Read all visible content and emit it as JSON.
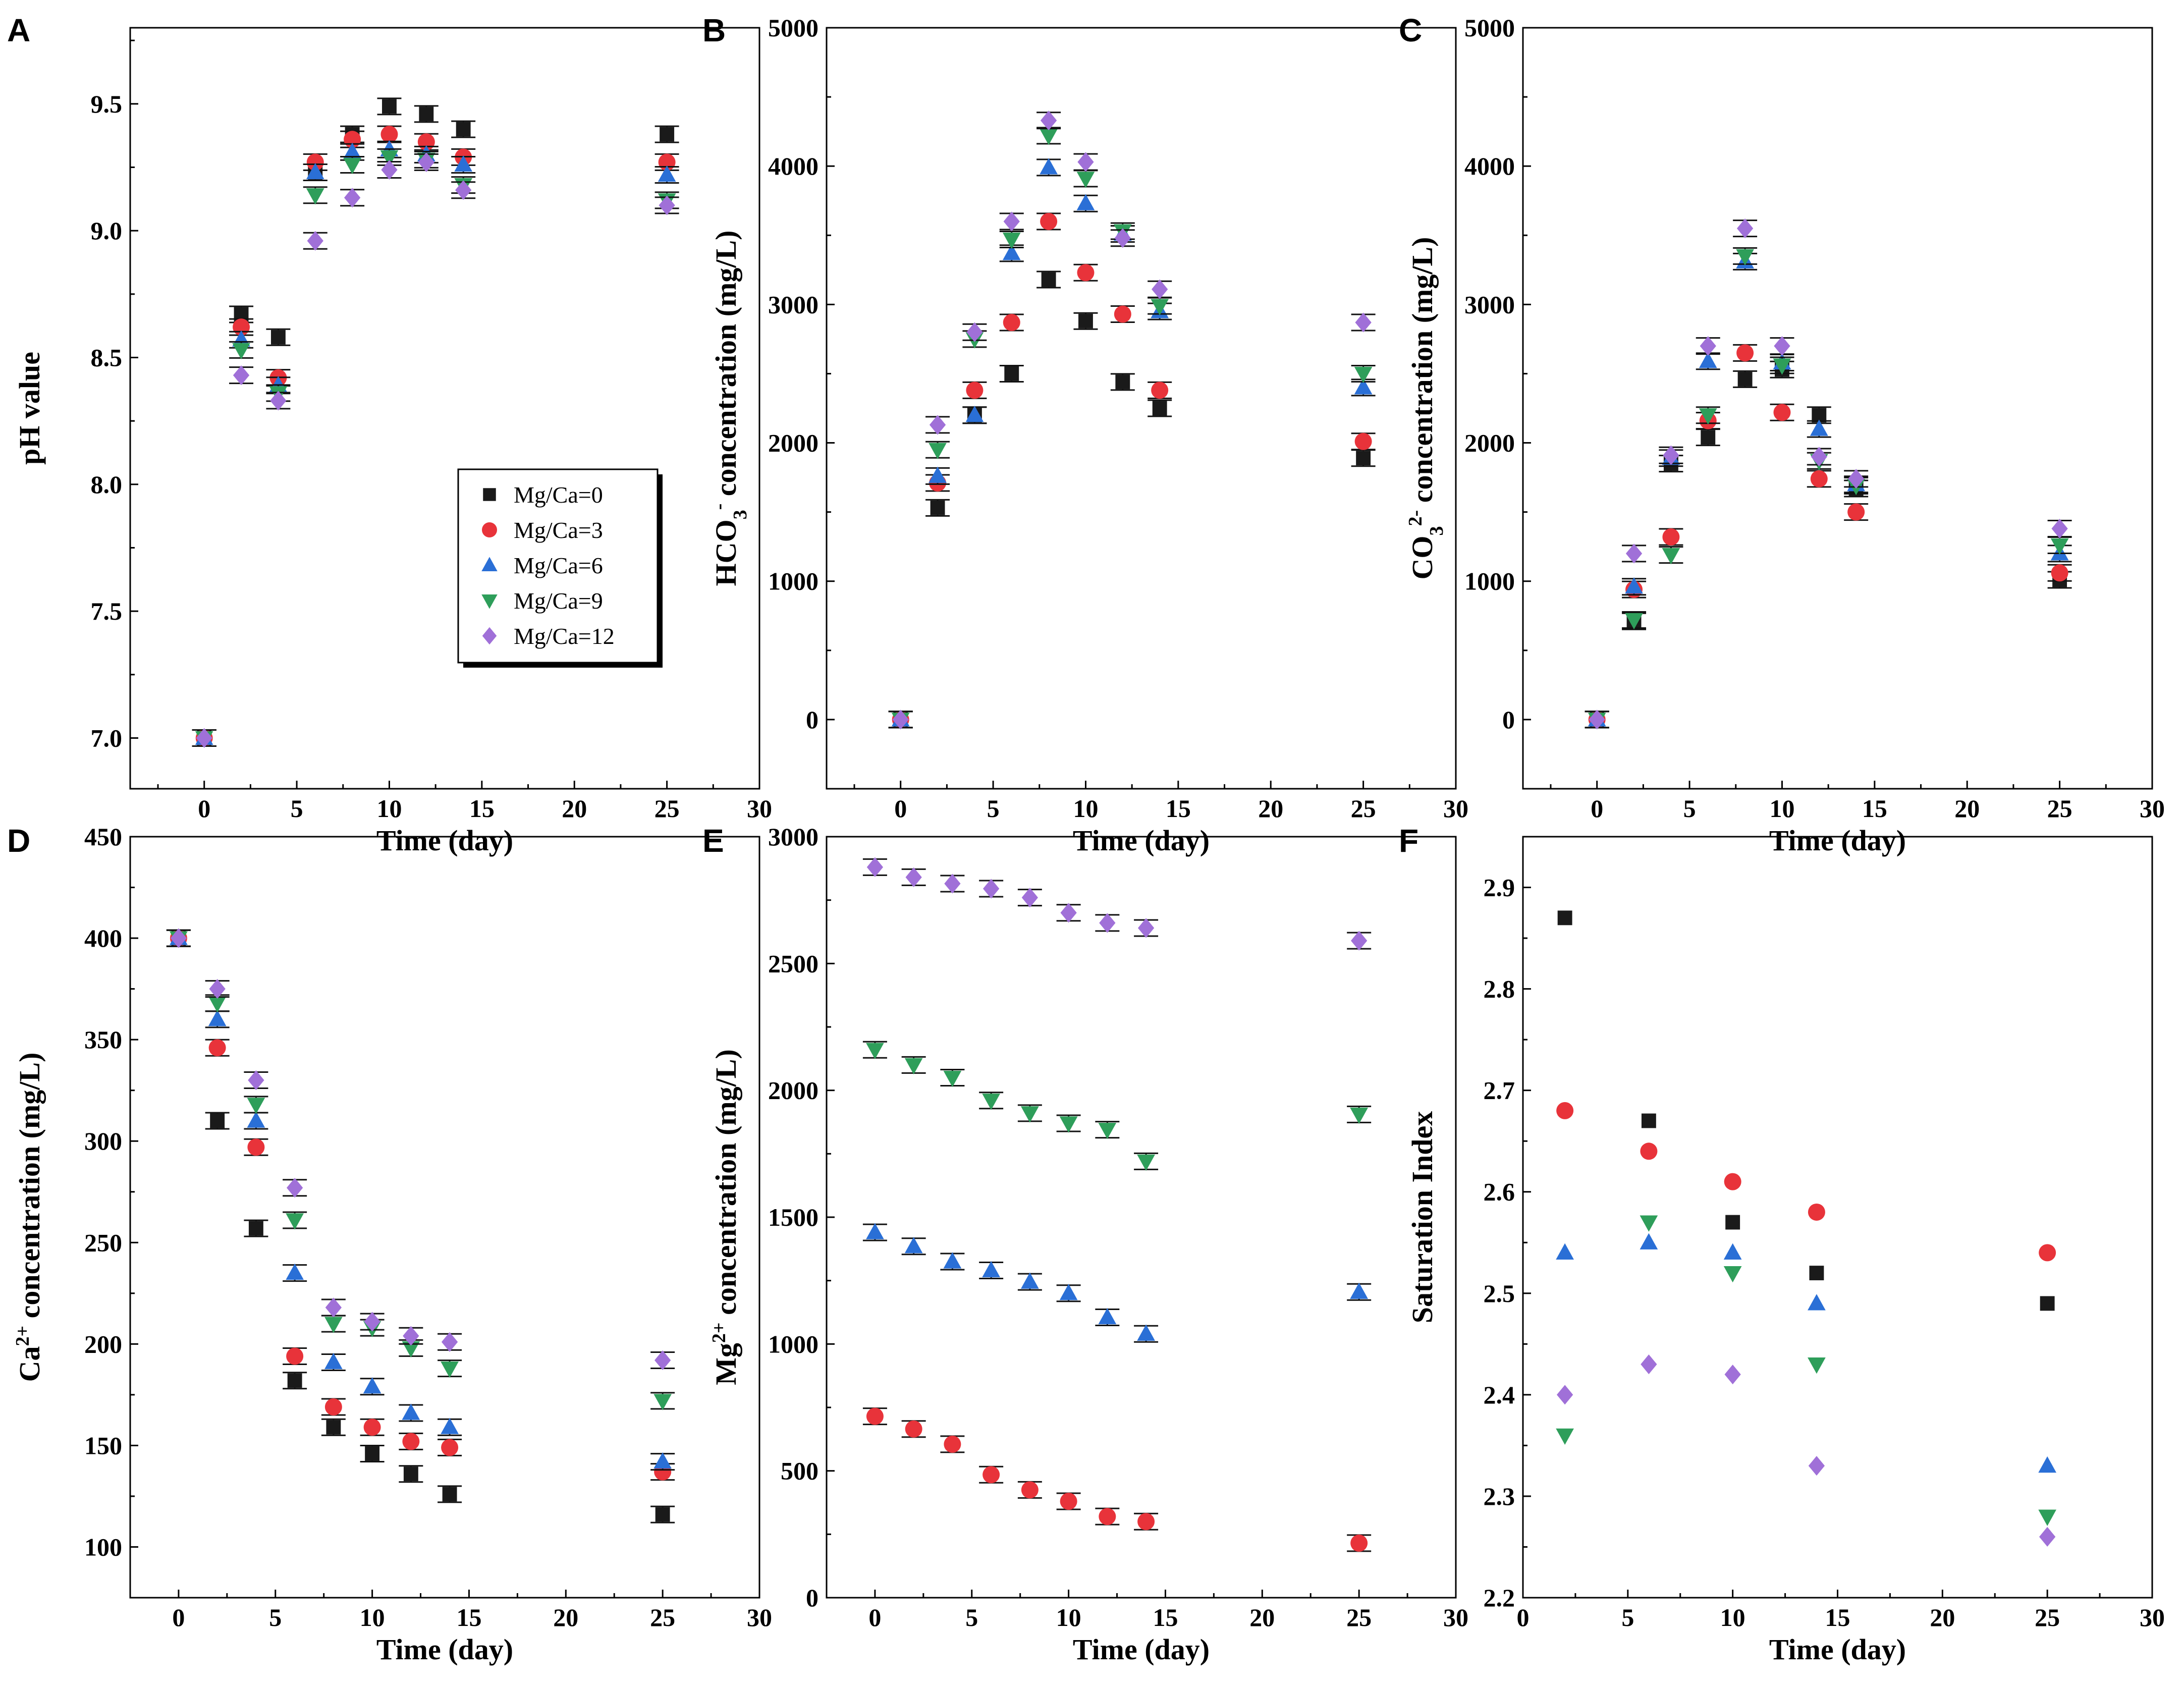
{
  "figure": {
    "series_names": [
      "Mg/Ca=0",
      "Mg/Ca=3",
      "Mg/Ca=6",
      "Mg/Ca=9",
      "Mg/Ca=12"
    ],
    "series_colors": [
      "#1a1a1a",
      "#e8333a",
      "#2a6fd6",
      "#2e9e5a",
      "#a070d8"
    ],
    "series_markers": [
      "square",
      "circle",
      "triangle-up",
      "triangle-down",
      "diamond"
    ],
    "errorbar_color": "#111111"
  },
  "chart_data": [
    {
      "id": "A",
      "panel_label": "A",
      "type": "scatter",
      "xlabel": "Time (day)",
      "ylabel": "pH value",
      "xlim": [
        -4,
        30
      ],
      "ylim": [
        6.8,
        9.8
      ],
      "xticks": [
        0,
        5,
        10,
        15,
        20,
        25,
        30
      ],
      "xtick_labels": [
        "0",
        "5",
        "10",
        "15",
        "20",
        "25",
        "30"
      ],
      "yticks": [
        7.0,
        7.5,
        8.0,
        8.5,
        9.0,
        9.5
      ],
      "ytick_labels": [
        "7.0",
        "7.5",
        "8.0",
        "8.5",
        "9.0",
        "9.5"
      ],
      "legend": "center-right",
      "x": [
        0,
        2,
        4,
        6,
        8,
        10,
        12,
        14,
        25
      ],
      "series": [
        {
          "name": "Mg/Ca=0",
          "values": [
            7.0,
            8.67,
            8.58,
            9.23,
            9.38,
            9.49,
            9.46,
            9.4,
            9.38
          ]
        },
        {
          "name": "Mg/Ca=3",
          "values": [
            7.0,
            8.62,
            8.42,
            9.27,
            9.36,
            9.38,
            9.35,
            9.29,
            9.27
          ]
        },
        {
          "name": "Mg/Ca=6",
          "values": [
            7.0,
            8.57,
            8.39,
            9.23,
            9.31,
            9.32,
            9.3,
            9.26,
            9.22
          ]
        },
        {
          "name": "Mg/Ca=9",
          "values": [
            7.0,
            8.53,
            8.36,
            9.14,
            9.26,
            9.29,
            9.28,
            9.18,
            9.12
          ]
        },
        {
          "name": "Mg/Ca=12",
          "values": [
            7.0,
            8.43,
            8.33,
            8.96,
            9.13,
            9.24,
            9.27,
            9.16,
            9.1
          ]
        }
      ]
    },
    {
      "id": "B",
      "panel_label": "B",
      "type": "scatter",
      "xlabel": "Time (day)",
      "ylabel": "HCO",
      "ylabel_sub": "3",
      "ylabel_sup": "-",
      "ylabel_rest": " concentration (mg/L)",
      "xlim": [
        -4,
        30
      ],
      "ylim": [
        -500,
        5000
      ],
      "xticks": [
        0,
        5,
        10,
        15,
        20,
        25,
        30
      ],
      "xtick_labels": [
        "0",
        "5",
        "10",
        "15",
        "20",
        "25",
        "30"
      ],
      "yticks": [
        0,
        1000,
        2000,
        3000,
        4000,
        5000
      ],
      "ytick_labels": [
        "0",
        "1000",
        "2000",
        "3000",
        "4000",
        "5000"
      ],
      "x": [
        0,
        2,
        4,
        6,
        8,
        10,
        12,
        14,
        25
      ],
      "series": [
        {
          "name": "Mg/Ca=0",
          "values": [
            0,
            1530,
            2200,
            2500,
            3180,
            2880,
            2440,
            2250,
            1890
          ]
        },
        {
          "name": "Mg/Ca=3",
          "values": [
            0,
            1710,
            2380,
            2870,
            3600,
            3230,
            2930,
            2380,
            2010
          ]
        },
        {
          "name": "Mg/Ca=6",
          "values": [
            0,
            1760,
            2200,
            3370,
            3990,
            3730,
            3510,
            2950,
            2400
          ]
        },
        {
          "name": "Mg/Ca=9",
          "values": [
            0,
            1950,
            2750,
            3470,
            4220,
            3910,
            3530,
            2990,
            2500
          ]
        },
        {
          "name": "Mg/Ca=12",
          "values": [
            0,
            2130,
            2800,
            3600,
            4330,
            4030,
            3480,
            3110,
            2870
          ]
        }
      ]
    },
    {
      "id": "C",
      "panel_label": "C",
      "type": "scatter",
      "xlabel": "Time (day)",
      "ylabel": "CO",
      "ylabel_sub": "3",
      "ylabel_sup": "2-",
      "ylabel_rest": " concentration (mg/L)",
      "xlim": [
        -4,
        30
      ],
      "ylim": [
        -500,
        5000
      ],
      "xticks": [
        0,
        5,
        10,
        15,
        20,
        25,
        30
      ],
      "xtick_labels": [
        "0",
        "5",
        "10",
        "15",
        "20",
        "25",
        "30"
      ],
      "yticks": [
        0,
        1000,
        2000,
        3000,
        4000,
        5000
      ],
      "ytick_labels": [
        "0",
        "1000",
        "2000",
        "3000",
        "4000",
        "5000"
      ],
      "x": [
        0,
        2,
        4,
        6,
        8,
        10,
        12,
        14,
        25
      ],
      "series": [
        {
          "name": "Mg/Ca=0",
          "values": [
            0,
            710,
            1850,
            2040,
            2460,
            2530,
            2200,
            1670,
            1010
          ]
        },
        {
          "name": "Mg/Ca=3",
          "values": [
            0,
            940,
            1320,
            2160,
            2650,
            2220,
            1740,
            1500,
            1060
          ]
        },
        {
          "name": "Mg/Ca=6",
          "values": [
            0,
            960,
            1890,
            2590,
            3310,
            2580,
            2100,
            1700,
            1200
          ]
        },
        {
          "name": "Mg/Ca=9",
          "values": [
            0,
            720,
            1190,
            2200,
            3350,
            2560,
            1870,
            1690,
            1260
          ]
        },
        {
          "name": "Mg/Ca=12",
          "values": [
            0,
            1200,
            1910,
            2700,
            3550,
            2700,
            1900,
            1740,
            1380
          ]
        }
      ]
    },
    {
      "id": "D",
      "panel_label": "D",
      "type": "scatter",
      "xlabel": "Time (day)",
      "ylabel": "Ca",
      "ylabel_sup": "2+",
      "ylabel_rest": " concentration (mg/L)",
      "xlim": [
        -2.5,
        30
      ],
      "ylim": [
        75,
        450
      ],
      "xticks": [
        0,
        5,
        10,
        15,
        20,
        25,
        30
      ],
      "xtick_labels": [
        "0",
        "5",
        "10",
        "15",
        "20",
        "25",
        "30"
      ],
      "yticks": [
        100,
        150,
        200,
        250,
        300,
        350,
        400,
        450
      ],
      "ytick_labels": [
        "100",
        "150",
        "200",
        "250",
        "300",
        "350",
        "400",
        "450"
      ],
      "x": [
        0,
        2,
        4,
        6,
        8,
        10,
        12,
        14,
        25
      ],
      "series": [
        {
          "name": "Mg/Ca=0",
          "values": [
            400,
            310,
            257,
            182,
            159,
            146,
            136,
            126,
            116
          ]
        },
        {
          "name": "Mg/Ca=3",
          "values": [
            400,
            346,
            297,
            194,
            169,
            159,
            152,
            149,
            137
          ]
        },
        {
          "name": "Mg/Ca=6",
          "values": [
            400,
            360,
            310,
            235,
            191,
            179,
            166,
            159,
            142
          ]
        },
        {
          "name": "Mg/Ca=9",
          "values": [
            400,
            368,
            318,
            261,
            210,
            208,
            198,
            188,
            172
          ]
        },
        {
          "name": "Mg/Ca=12",
          "values": [
            400,
            375,
            330,
            277,
            218,
            211,
            204,
            201,
            192
          ]
        }
      ]
    },
    {
      "id": "E",
      "panel_label": "E",
      "type": "scatter",
      "xlabel": "Time (day)",
      "ylabel": "Mg",
      "ylabel_sup": "2+",
      "ylabel_rest": " concentration (mg/L)",
      "xlim": [
        -2.5,
        30
      ],
      "ylim": [
        0,
        3000
      ],
      "xticks": [
        0,
        5,
        10,
        15,
        20,
        25,
        30
      ],
      "xtick_labels": [
        "0",
        "5",
        "10",
        "15",
        "20",
        "25",
        "30"
      ],
      "yticks": [
        0,
        500,
        1000,
        1500,
        2000,
        2500,
        3000
      ],
      "ytick_labels": [
        "0",
        "500",
        "1000",
        "1500",
        "2000",
        "2500",
        "3000"
      ],
      "x": [
        0,
        2,
        4,
        6,
        8,
        10,
        12,
        14,
        25
      ],
      "series": [
        {
          "name": "Mg/Ca=3",
          "values": [
            715,
            665,
            605,
            485,
            425,
            380,
            320,
            300,
            215
          ]
        },
        {
          "name": "Mg/Ca=6",
          "values": [
            1440,
            1385,
            1325,
            1290,
            1245,
            1200,
            1105,
            1040,
            1205
          ]
        },
        {
          "name": "Mg/Ca=9",
          "values": [
            2160,
            2100,
            2050,
            1960,
            1910,
            1870,
            1845,
            1720,
            1905
          ]
        },
        {
          "name": "Mg/Ca=12",
          "values": [
            2880,
            2840,
            2815,
            2795,
            2760,
            2700,
            2660,
            2640,
            2590
          ]
        }
      ]
    },
    {
      "id": "F",
      "panel_label": "F",
      "type": "scatter",
      "xlabel": "Time (day)",
      "ylabel": "Saturation Index",
      "xlim": [
        0,
        30
      ],
      "ylim": [
        2.2,
        2.95
      ],
      "xticks": [
        0,
        5,
        10,
        15,
        20,
        25,
        30
      ],
      "xtick_labels": [
        "0",
        "5",
        "10",
        "15",
        "20",
        "25",
        "30"
      ],
      "yticks": [
        2.2,
        2.3,
        2.4,
        2.5,
        2.6,
        2.7,
        2.8,
        2.9
      ],
      "ytick_labels": [
        "2.2",
        "2.3",
        "2.4",
        "2.5",
        "2.6",
        "2.7",
        "2.8",
        "2.9"
      ],
      "x": [
        2,
        6,
        10,
        14,
        25
      ],
      "series": [
        {
          "name": "Mg/Ca=0",
          "values": [
            2.87,
            2.67,
            2.57,
            2.52,
            2.49
          ]
        },
        {
          "name": "Mg/Ca=3",
          "values": [
            2.68,
            2.64,
            2.61,
            2.58,
            2.54
          ]
        },
        {
          "name": "Mg/Ca=6",
          "values": [
            2.54,
            2.55,
            2.54,
            2.49,
            2.33
          ]
        },
        {
          "name": "Mg/Ca=9",
          "values": [
            2.36,
            2.57,
            2.52,
            2.43,
            2.28
          ]
        },
        {
          "name": "Mg/Ca=12",
          "values": [
            2.4,
            2.43,
            2.42,
            2.33,
            2.26
          ]
        }
      ]
    }
  ]
}
